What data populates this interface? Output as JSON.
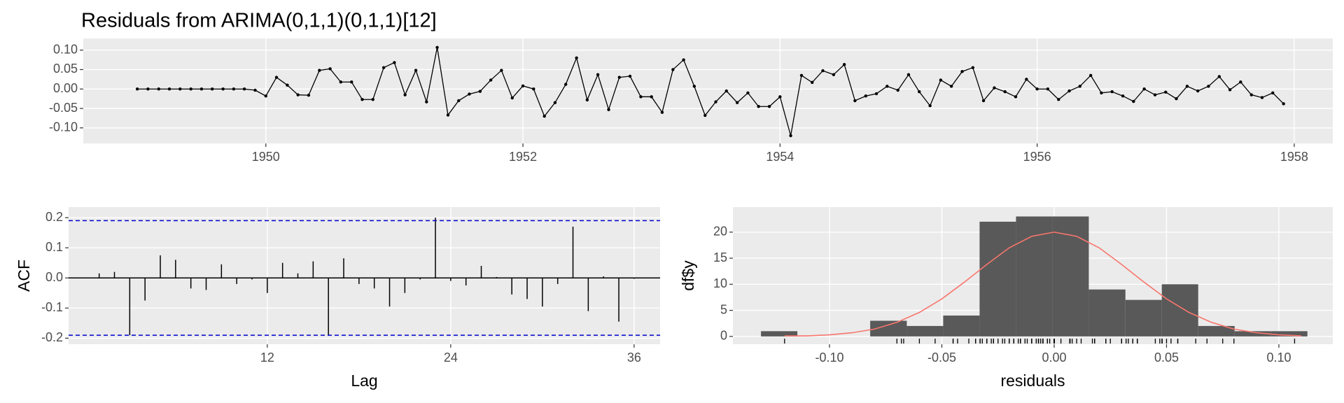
{
  "chart_data": [
    {
      "type": "line",
      "title": "Residuals from ARIMA(0,1,1)(0,1,1)[12]",
      "color": "#000000",
      "grid": true,
      "x": [
        1949,
        1949.083,
        1949.167,
        1949.25,
        1949.333,
        1949.417,
        1949.5,
        1949.583,
        1949.667,
        1949.75,
        1949.833,
        1949.917,
        1950,
        1950.083,
        1950.167,
        1950.25,
        1950.333,
        1950.417,
        1950.5,
        1950.583,
        1950.667,
        1950.75,
        1950.833,
        1950.917,
        1951,
        1951.083,
        1951.167,
        1951.25,
        1951.333,
        1951.417,
        1951.5,
        1951.583,
        1951.667,
        1951.75,
        1951.833,
        1951.917,
        1952,
        1952.083,
        1952.167,
        1952.25,
        1952.333,
        1952.417,
        1952.5,
        1952.583,
        1952.667,
        1952.75,
        1952.833,
        1952.917,
        1953,
        1953.083,
        1953.167,
        1953.25,
        1953.333,
        1953.417,
        1953.5,
        1953.583,
        1953.667,
        1953.75,
        1953.833,
        1953.917,
        1954,
        1954.083,
        1954.167,
        1954.25,
        1954.333,
        1954.417,
        1954.5,
        1954.583,
        1954.667,
        1954.75,
        1954.833,
        1954.917,
        1955,
        1955.083,
        1955.167,
        1955.25,
        1955.333,
        1955.417,
        1955.5,
        1955.583,
        1955.667,
        1955.75,
        1955.833,
        1955.917,
        1956,
        1956.083,
        1956.167,
        1956.25,
        1956.333,
        1956.417,
        1956.5,
        1956.583,
        1956.667,
        1956.75,
        1956.833,
        1956.917,
        1957,
        1957.083,
        1957.167,
        1957.25,
        1957.333,
        1957.417,
        1957.5,
        1957.583,
        1957.667,
        1957.75,
        1957.833,
        1957.917
      ],
      "values": [
        0,
        0,
        0,
        0,
        0,
        0,
        0,
        0,
        0,
        0,
        0,
        -0.003,
        -0.018,
        0.03,
        0.01,
        -0.015,
        -0.016,
        0.048,
        0.052,
        0.018,
        0.018,
        -0.027,
        -0.027,
        0.055,
        0.068,
        -0.015,
        0.048,
        -0.033,
        0.107,
        -0.067,
        -0.03,
        -0.013,
        -0.006,
        0.023,
        0.048,
        -0.023,
        0.008,
        0,
        -0.07,
        -0.035,
        0.012,
        0.08,
        -0.028,
        0.037,
        -0.053,
        0.03,
        0.033,
        -0.02,
        -0.02,
        -0.06,
        0.05,
        0.075,
        0.007,
        -0.068,
        -0.033,
        -0.005,
        -0.035,
        -0.01,
        -0.045,
        -0.045,
        -0.02,
        -0.12,
        0.035,
        0.017,
        0.047,
        0.037,
        0.063,
        -0.03,
        -0.018,
        -0.012,
        0.007,
        -0.003,
        0.037,
        -0.007,
        -0.043,
        0.023,
        0.007,
        0.045,
        0.055,
        -0.03,
        0.003,
        -0.007,
        -0.02,
        0.025,
        0,
        0,
        -0.027,
        -0.005,
        0.007,
        0.035,
        -0.01,
        -0.007,
        -0.018,
        -0.032,
        0,
        -0.015,
        -0.008,
        -0.025,
        0.007,
        -0.005,
        0.007,
        0.032,
        -0.002,
        0.018,
        -0.015,
        -0.022,
        -0.01,
        -0.038
      ],
      "xlim": [
        1948.58,
        1958.3
      ],
      "xticks": [
        1950,
        1952,
        1954,
        1956,
        1958
      ],
      "ylim": [
        -0.14,
        0.13
      ],
      "yticks": [
        {
          "value": -0.1,
          "label": "-0.10"
        },
        {
          "value": -0.05,
          "label": "-0.05"
        },
        {
          "value": 0,
          "label": "0.00"
        },
        {
          "value": 0.05,
          "label": "0.05"
        },
        {
          "value": 0.1,
          "label": "0.10"
        }
      ]
    },
    {
      "type": "bar",
      "xlabel": "Lag",
      "ylabel": "ACF",
      "color": "#000000",
      "grid": true,
      "x": [
        1,
        2,
        3,
        4,
        5,
        6,
        7,
        8,
        9,
        10,
        11,
        12,
        13,
        14,
        15,
        16,
        17,
        18,
        19,
        20,
        21,
        22,
        23,
        24,
        25,
        26,
        27,
        28,
        29,
        30,
        31,
        32,
        33,
        34,
        35,
        36
      ],
      "values": [
        0.015,
        0.02,
        -0.19,
        -0.075,
        0.075,
        0.06,
        -0.035,
        -0.04,
        0.045,
        -0.02,
        -0.005,
        -0.05,
        0.05,
        0.015,
        0.055,
        -0.19,
        0.065,
        -0.02,
        -0.035,
        -0.095,
        -0.05,
        -0.005,
        0.2,
        -0.01,
        -0.025,
        0.04,
        0.003,
        -0.055,
        -0.07,
        -0.095,
        -0.02,
        0.17,
        -0.11,
        0.005,
        -0.145,
        -0.003
      ],
      "confidence_limits": [
        -0.19,
        0.19
      ],
      "limit_color": "#0000cc",
      "xlim": [
        -1,
        37.7
      ],
      "xticks": [
        12,
        24,
        36
      ],
      "ylim": [
        -0.22,
        0.235
      ],
      "yticks": [
        {
          "value": -0.2,
          "label": "-0.2"
        },
        {
          "value": -0.1,
          "label": "-0.1"
        },
        {
          "value": 0,
          "label": "0.0"
        },
        {
          "value": 0.1,
          "label": "0.1"
        },
        {
          "value": 0.2,
          "label": "0.2"
        }
      ]
    },
    {
      "type": "histogram",
      "xlabel": "residuals",
      "ylabel": "df$y",
      "color": "#595959",
      "grid": true,
      "rug": true,
      "bins": [
        -0.1305,
        -0.1143,
        -0.0981,
        -0.0819,
        -0.0656,
        -0.0494,
        -0.0332,
        -0.017,
        -0.0008,
        0.0154,
        0.0317,
        0.0479,
        0.0641,
        0.0803,
        0.0965,
        0.1127
      ],
      "values": [
        1,
        0,
        0,
        3,
        2,
        4,
        22,
        23,
        23,
        9,
        7,
        10,
        2,
        1,
        1
      ],
      "curve": {
        "color": "#f8766d",
        "x": [
          -0.12,
          -0.11,
          -0.1,
          -0.09,
          -0.08,
          -0.07,
          -0.06,
          -0.05,
          -0.04,
          -0.03,
          -0.02,
          -0.01,
          0,
          0.01,
          0.02,
          0.03,
          0.04,
          0.05,
          0.06,
          0.07,
          0.08,
          0.09,
          0.1,
          0.11
        ],
        "values": [
          0.1,
          0.1,
          0.3,
          0.7,
          1.4,
          2.7,
          4.6,
          7.2,
          10.4,
          13.8,
          17,
          19.2,
          20,
          19.2,
          17,
          13.8,
          10.4,
          7.2,
          4.6,
          2.7,
          1.4,
          0.7,
          0.3,
          0.1
        ]
      },
      "xlim": [
        -0.143,
        0.124
      ],
      "xticks": [
        {
          "value": -0.1,
          "label": "-0.10"
        },
        {
          "value": -0.05,
          "label": "-0.05"
        },
        {
          "value": 0,
          "label": "0.00"
        },
        {
          "value": 0.05,
          "label": "0.05"
        },
        {
          "value": 0.1,
          "label": "0.10"
        }
      ],
      "ylim": [
        -1.5,
        24.8
      ],
      "yticks": [
        0,
        5,
        10,
        15,
        20
      ]
    }
  ]
}
